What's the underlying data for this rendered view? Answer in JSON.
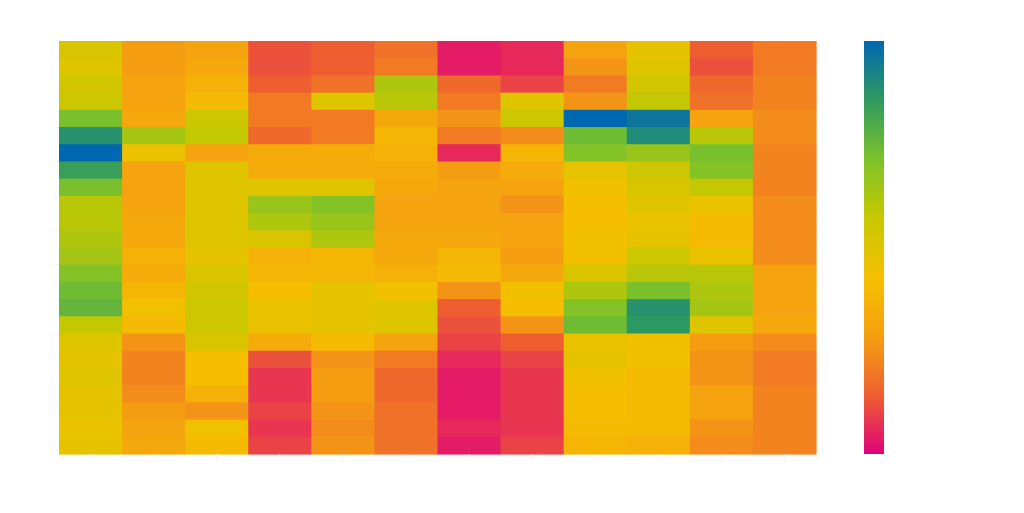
{
  "chart_data": {
    "type": "heatmap",
    "title": "",
    "xlabel": "",
    "ylabel": "",
    "colorbar_label": "",
    "x_tick_labels": [
      "",
      "",
      "",
      "",
      "",
      "",
      "",
      "",
      "",
      "",
      "",
      ""
    ],
    "y_tick_labels": [
      "",
      "",
      "",
      "",
      "",
      "",
      "",
      "",
      "",
      "",
      "",
      ""
    ],
    "colorbar_ticks": [],
    "colormap": [
      "#E0007A",
      "#EE6030",
      "#F5A010",
      "#F5C000",
      "#C8C800",
      "#7CC22A",
      "#2E9A60",
      "#0068B0"
    ],
    "zrange": [
      0,
      1
    ],
    "rows": 24,
    "cols": 12,
    "z": [
      [
        0.52,
        0.28,
        0.3,
        0.12,
        0.14,
        0.18,
        0.04,
        0.06,
        0.3,
        0.48,
        0.14,
        0.2
      ],
      [
        0.5,
        0.28,
        0.32,
        0.12,
        0.14,
        0.2,
        0.04,
        0.06,
        0.26,
        0.5,
        0.12,
        0.2
      ],
      [
        0.54,
        0.3,
        0.36,
        0.14,
        0.18,
        0.62,
        0.16,
        0.1,
        0.2,
        0.54,
        0.16,
        0.22
      ],
      [
        0.56,
        0.3,
        0.4,
        0.2,
        0.5,
        0.6,
        0.2,
        0.5,
        0.26,
        0.58,
        0.18,
        0.22
      ],
      [
        0.72,
        0.32,
        0.56,
        0.2,
        0.2,
        0.32,
        0.26,
        0.56,
        1.0,
        0.96,
        0.3,
        0.24
      ],
      [
        0.88,
        0.64,
        0.58,
        0.16,
        0.2,
        0.38,
        0.2,
        0.24,
        0.74,
        0.9,
        0.6,
        0.24
      ],
      [
        1.0,
        0.46,
        0.3,
        0.34,
        0.34,
        0.36,
        0.06,
        0.38,
        0.7,
        0.66,
        0.72,
        0.22
      ],
      [
        0.84,
        0.3,
        0.5,
        0.34,
        0.34,
        0.34,
        0.28,
        0.34,
        0.48,
        0.56,
        0.7,
        0.22
      ],
      [
        0.72,
        0.3,
        0.5,
        0.5,
        0.5,
        0.32,
        0.3,
        0.3,
        0.44,
        0.52,
        0.58,
        0.22
      ],
      [
        0.6,
        0.3,
        0.5,
        0.66,
        0.7,
        0.3,
        0.3,
        0.26,
        0.42,
        0.5,
        0.46,
        0.24
      ],
      [
        0.6,
        0.32,
        0.5,
        0.62,
        0.66,
        0.3,
        0.3,
        0.3,
        0.42,
        0.46,
        0.4,
        0.24
      ],
      [
        0.62,
        0.32,
        0.5,
        0.52,
        0.62,
        0.32,
        0.32,
        0.3,
        0.44,
        0.48,
        0.4,
        0.24
      ],
      [
        0.64,
        0.36,
        0.48,
        0.36,
        0.38,
        0.32,
        0.38,
        0.28,
        0.44,
        0.56,
        0.46,
        0.24
      ],
      [
        0.7,
        0.34,
        0.52,
        0.38,
        0.38,
        0.36,
        0.4,
        0.32,
        0.52,
        0.6,
        0.6,
        0.3
      ],
      [
        0.74,
        0.38,
        0.54,
        0.42,
        0.48,
        0.44,
        0.26,
        0.44,
        0.62,
        0.72,
        0.62,
        0.3
      ],
      [
        0.76,
        0.44,
        0.56,
        0.46,
        0.48,
        0.5,
        0.14,
        0.42,
        0.7,
        0.88,
        0.64,
        0.3
      ],
      [
        0.58,
        0.4,
        0.56,
        0.46,
        0.48,
        0.5,
        0.12,
        0.26,
        0.74,
        0.86,
        0.5,
        0.32
      ],
      [
        0.5,
        0.26,
        0.52,
        0.34,
        0.4,
        0.3,
        0.1,
        0.14,
        0.46,
        0.44,
        0.28,
        0.24
      ],
      [
        0.48,
        0.22,
        0.42,
        0.12,
        0.26,
        0.2,
        0.06,
        0.1,
        0.48,
        0.44,
        0.26,
        0.2
      ],
      [
        0.5,
        0.22,
        0.42,
        0.08,
        0.28,
        0.16,
        0.04,
        0.08,
        0.44,
        0.4,
        0.26,
        0.2
      ],
      [
        0.48,
        0.24,
        0.36,
        0.08,
        0.28,
        0.16,
        0.04,
        0.08,
        0.42,
        0.4,
        0.3,
        0.22
      ],
      [
        0.48,
        0.28,
        0.26,
        0.1,
        0.26,
        0.18,
        0.04,
        0.08,
        0.42,
        0.4,
        0.3,
        0.22
      ],
      [
        0.46,
        0.3,
        0.44,
        0.08,
        0.24,
        0.18,
        0.06,
        0.08,
        0.4,
        0.4,
        0.26,
        0.22
      ],
      [
        0.48,
        0.32,
        0.4,
        0.1,
        0.26,
        0.18,
        0.04,
        0.1,
        0.38,
        0.36,
        0.24,
        0.22
      ]
    ]
  }
}
